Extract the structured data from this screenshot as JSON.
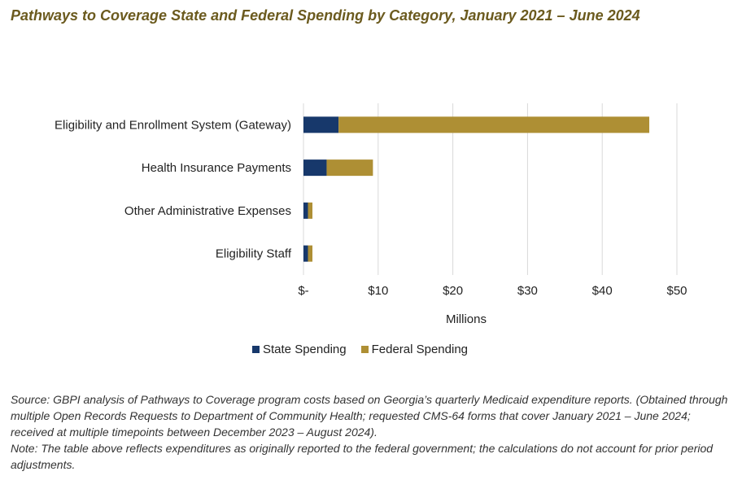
{
  "title": "Pathways to Coverage State and Federal Spending by Category, January 2021 – June 2024",
  "colors": {
    "state": "#17386b",
    "federal": "#ae8f34",
    "grid": "#d9d9d9",
    "title": "#6b5a1e"
  },
  "chart_data": {
    "type": "bar",
    "orientation": "horizontal",
    "stacked": true,
    "categories": [
      "Eligibility and Enrollment System (Gateway)",
      "Health Insurance Payments",
      "Other Administrative Expenses",
      "Eligibility Staff"
    ],
    "series": [
      {
        "name": "State Spending",
        "values": [
          4.7,
          3.1,
          0.6,
          0.6
        ]
      },
      {
        "name": "Federal Spending",
        "values": [
          41.6,
          6.2,
          0.6,
          0.6
        ]
      }
    ],
    "xlabel": "Millions",
    "xlim": [
      0,
      50
    ],
    "xticks": [
      0,
      10,
      20,
      30,
      40,
      50
    ],
    "xtick_labels": [
      "$-",
      "$10",
      "$20",
      "$30",
      "$40",
      "$50"
    ],
    "grid": true,
    "legend_position": "bottom"
  },
  "legend": {
    "state": "State Spending",
    "federal": "Federal Spending"
  },
  "notes": {
    "source": "Source: GBPI analysis of Pathways to Coverage program costs based on Georgia’s quarterly Medicaid expenditure reports. (Obtained through multiple Open Records Requests to Department of Community Health; requested CMS-64 forms that cover January 2021 – June 2024; received at multiple timepoints between December 2023 – August 2024).",
    "note": "Note: The table above reflects expenditures as originally reported to the federal government; the calculations do not account for prior period adjustments."
  }
}
